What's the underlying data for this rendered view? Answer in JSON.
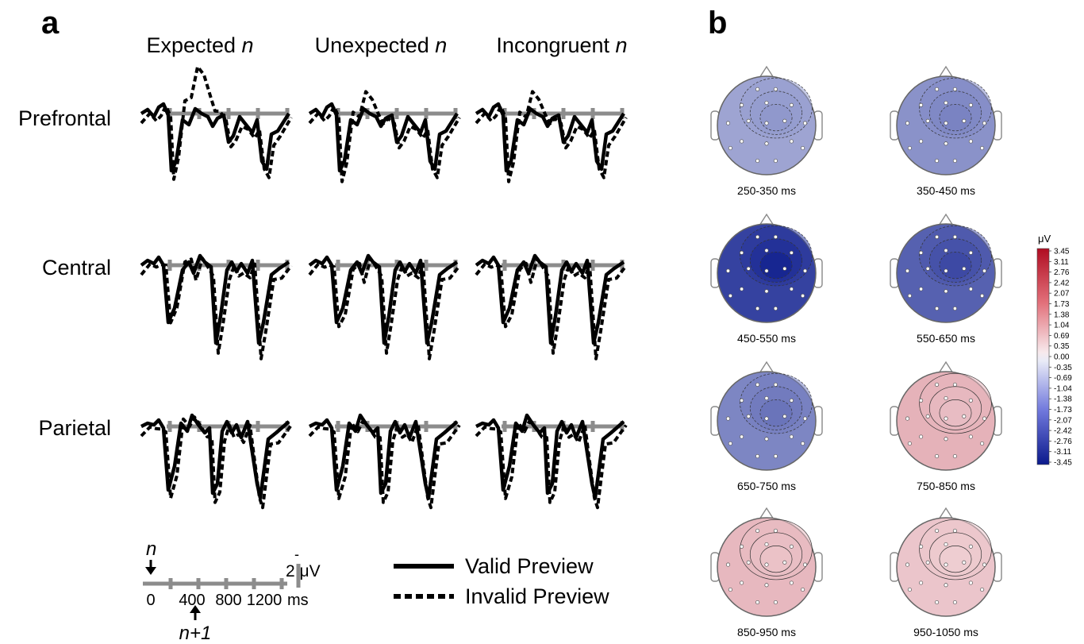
{
  "panel_a": {
    "label": "a",
    "columns": [
      "Expected n",
      "Unexpected n",
      "Incongruent n"
    ],
    "columns_parts": [
      {
        "word": "Expected",
        "var": "n"
      },
      {
        "word": "Unexpected",
        "var": "n"
      },
      {
        "word": "Incongruent",
        "var": "n"
      }
    ],
    "rows": [
      "Prefrontal",
      "Central",
      "Parietal"
    ],
    "scale": {
      "n_marker": "n",
      "n1_marker": "n+1",
      "ticks": [
        "0",
        "400",
        "800",
        "1200"
      ],
      "unit": "ms",
      "amp_minus": "-",
      "amp_label": "2 μV"
    },
    "legend": {
      "valid": "Valid Preview",
      "invalid": "Invalid Preview"
    }
  },
  "panel_b": {
    "label": "b",
    "colorbar_unit": "μV",
    "colorbar_ticks": [
      "3.45",
      "3.11",
      "2.76",
      "2.42",
      "2.07",
      "1.73",
      "1.38",
      "1.04",
      "0.69",
      "0.35",
      "0.00",
      "-0.35",
      "-0.69",
      "-1.04",
      "-1.38",
      "-1.73",
      "-2.07",
      "-2.42",
      "-2.76",
      "-3.11",
      "-3.45"
    ],
    "maps": [
      {
        "label": "250-350 ms",
        "level": -1.2
      },
      {
        "label": "350-450 ms",
        "level": -1.5
      },
      {
        "label": "450-550 ms",
        "level": -2.8
      },
      {
        "label": "550-650 ms",
        "level": -2.3
      },
      {
        "label": "650-750 ms",
        "level": -1.7
      },
      {
        "label": "750-850 ms",
        "level": 0.9
      },
      {
        "label": "850-950 ms",
        "level": 0.8
      },
      {
        "label": "950-1050 ms",
        "level": 0.6
      }
    ]
  },
  "colors": {
    "baseline": "#8c8c8c",
    "neg_max": "#0b1a8c",
    "pos_max": "#b00d22",
    "zero": "#f4f4f8"
  }
}
